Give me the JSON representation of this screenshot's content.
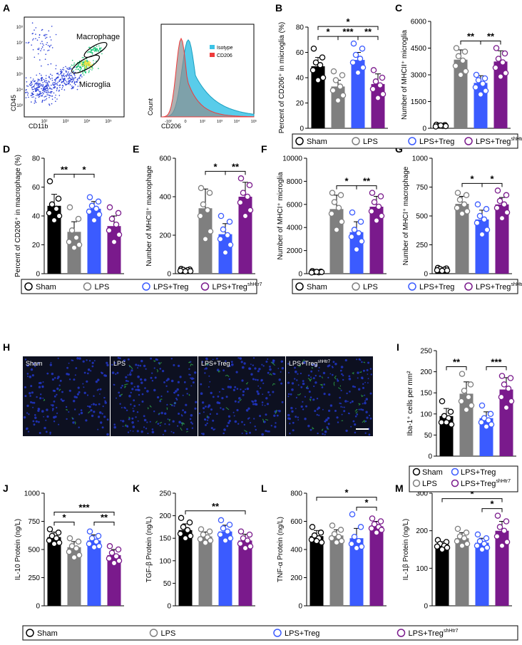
{
  "colors": {
    "sham": "#000000",
    "lps": "#7f7f7f",
    "treg": "#3b5bff",
    "sh": "#7a1a8c",
    "isotype": "#3cc3e6",
    "cd206": "#ef3b3b",
    "img_bg": "#0d1020"
  },
  "legend": {
    "sham": "Sham",
    "lps": "LPS",
    "treg": "LPS+Treg",
    "sh_base": "LPS+Treg",
    "sh_sup": "shHtr7"
  },
  "flow": {
    "panel_label": "A",
    "x_label": "CD11b",
    "y_label": "CD45",
    "gate_macrophage": "Macrophage",
    "gate_microglia": "Microglia",
    "x_ticks": [
      "10²",
      "10³",
      "10⁴",
      "10⁵"
    ],
    "y_ticks": [
      "10³",
      "10⁴",
      "10⁵",
      "10⁶",
      "10⁷",
      "10⁸"
    ]
  },
  "histogram": {
    "x_label": "CD206",
    "y_label": "Count",
    "legend": [
      "Isotype",
      "CD206"
    ],
    "x_ticks": [
      "-10²",
      "0",
      "10²",
      "10³",
      "10⁴",
      "10⁵"
    ]
  },
  "micrographs": {
    "panel_label": "H",
    "labels": [
      "Sham",
      "LPS",
      "LPS+Treg",
      "LPS+Treg"
    ],
    "label_sup": "shHtr7"
  },
  "chart_data": [
    {
      "id": "B",
      "type": "bar",
      "ylabel": "Percent of CD206⁺ in microglia (%)",
      "ylim": [
        0,
        80
      ],
      "yticks": [
        0,
        20,
        40,
        60,
        80
      ],
      "categories": [
        "Sham",
        "LPS",
        "LPS+Treg",
        "LPS+Treg shHtr7"
      ],
      "values": [
        49,
        33,
        54,
        35
      ],
      "errors": [
        7,
        5,
        6,
        8
      ],
      "points": [
        [
          63,
          56,
          52,
          50,
          46,
          40,
          38
        ],
        [
          45,
          42,
          38,
          33,
          30,
          26,
          22
        ],
        [
          67,
          63,
          58,
          55,
          52,
          48,
          44
        ],
        [
          46,
          40,
          37,
          34,
          31,
          27,
          24
        ]
      ],
      "sig": [
        {
          "a": 0,
          "b": 1,
          "label": "*",
          "lvl": 0
        },
        {
          "a": 1,
          "b": 2,
          "label": "***",
          "lvl": 0
        },
        {
          "a": 2,
          "b": 3,
          "label": "**",
          "lvl": 0
        },
        {
          "a": 0,
          "b": 3,
          "label": "*",
          "lvl": 1
        }
      ]
    },
    {
      "id": "C",
      "type": "bar",
      "ylabel": "Number of MHCII⁺ microglia",
      "ylim": [
        0,
        6000
      ],
      "yticks": [
        0,
        1500,
        3000,
        4500,
        6000
      ],
      "categories": [
        "Sham",
        "LPS",
        "LPS+Treg",
        "LPS+Treg shHtr7"
      ],
      "values": [
        150,
        3850,
        2550,
        3750
      ],
      "errors": [
        60,
        550,
        400,
        600
      ],
      "points": [
        [
          200,
          180,
          150,
          130,
          100,
          120,
          160
        ],
        [
          4500,
          4300,
          4050,
          3800,
          3500,
          3200,
          3000
        ],
        [
          3000,
          2800,
          2700,
          2500,
          2300,
          2100,
          1900
        ],
        [
          4500,
          4200,
          3900,
          3700,
          3400,
          3100,
          2900
        ]
      ],
      "sig": [
        {
          "a": 1,
          "b": 2,
          "label": "**",
          "lvl": 0
        },
        {
          "a": 2,
          "b": 3,
          "label": "**",
          "lvl": 0
        }
      ]
    },
    {
      "id": "D",
      "type": "bar",
      "ylabel": "Percent of CD206⁺ in macrophage (%)",
      "ylim": [
        0,
        80
      ],
      "yticks": [
        0,
        20,
        40,
        60,
        80
      ],
      "categories": [
        "Sham",
        "LPS",
        "LPS+Treg",
        "LPS+Treg shHtr7"
      ],
      "values": [
        47,
        29,
        45,
        33
      ],
      "errors": [
        8,
        7,
        5,
        7
      ],
      "points": [
        [
          64,
          52,
          48,
          45,
          42,
          40,
          37
        ],
        [
          46,
          38,
          30,
          25,
          22,
          20,
          18
        ],
        [
          53,
          50,
          47,
          45,
          43,
          41,
          37
        ],
        [
          46,
          42,
          38,
          34,
          30,
          27,
          22
        ]
      ],
      "sig": [
        {
          "a": 0,
          "b": 1,
          "label": "**",
          "lvl": 0
        },
        {
          "a": 1,
          "b": 2,
          "label": "*",
          "lvl": 0
        }
      ]
    },
    {
      "id": "E",
      "type": "bar",
      "ylabel": "Number of MHCII⁺ macrophage",
      "ylim": [
        0,
        600
      ],
      "yticks": [
        0,
        200,
        400,
        600
      ],
      "categories": [
        "Sham",
        "LPS",
        "LPS+Treg",
        "LPS+Treg shHtr7"
      ],
      "values": [
        18,
        340,
        205,
        400
      ],
      "errors": [
        8,
        100,
        55,
        75
      ],
      "points": [
        [
          25,
          22,
          20,
          18,
          15,
          13,
          12
        ],
        [
          445,
          420,
          360,
          330,
          300,
          220,
          180
        ],
        [
          300,
          270,
          230,
          200,
          180,
          150,
          110
        ],
        [
          495,
          460,
          420,
          400,
          370,
          330,
          300
        ]
      ],
      "sig": [
        {
          "a": 1,
          "b": 2,
          "label": "*",
          "lvl": 0
        },
        {
          "a": 2,
          "b": 3,
          "label": "**",
          "lvl": 0
        }
      ]
    },
    {
      "id": "F",
      "type": "bar",
      "ylabel": "Number of MHCI⁺ microglia",
      "ylim": [
        0,
        10000
      ],
      "yticks": [
        0,
        2000,
        4000,
        6000,
        8000,
        10000
      ],
      "categories": [
        "Sham",
        "LPS",
        "LPS+Treg",
        "LPS+Treg shHtr7"
      ],
      "values": [
        150,
        5600,
        3600,
        5800
      ],
      "errors": [
        60,
        1200,
        900,
        900
      ],
      "points": [
        [
          220,
          180,
          150,
          120,
          100,
          140,
          160
        ],
        [
          7000,
          6800,
          6200,
          5700,
          5200,
          4500,
          3800
        ],
        [
          5300,
          4500,
          3800,
          3500,
          3200,
          2800,
          2100
        ],
        [
          7000,
          6700,
          6200,
          5800,
          5400,
          5000,
          4600
        ]
      ],
      "sig": [
        {
          "a": 1,
          "b": 2,
          "label": "*",
          "lvl": 0
        },
        {
          "a": 2,
          "b": 3,
          "label": "**",
          "lvl": 0
        }
      ]
    },
    {
      "id": "G",
      "type": "bar",
      "ylabel": "Number of MHCI⁺ macrophage",
      "ylim": [
        0,
        1000
      ],
      "yticks": [
        0,
        250,
        500,
        750,
        1000
      ],
      "categories": [
        "Sham",
        "LPS",
        "LPS+Treg",
        "LPS+Treg shHtr7"
      ],
      "values": [
        35,
        605,
        470,
        600
      ],
      "errors": [
        12,
        65,
        80,
        60
      ],
      "points": [
        [
          50,
          45,
          40,
          35,
          30,
          28,
          25
        ],
        [
          700,
          680,
          640,
          600,
          570,
          540,
          520
        ],
        [
          600,
          560,
          500,
          470,
          440,
          380,
          340
        ],
        [
          720,
          680,
          630,
          600,
          570,
          530,
          480
        ]
      ],
      "sig": [
        {
          "a": 1,
          "b": 2,
          "label": "*",
          "lvl": 0
        },
        {
          "a": 2,
          "b": 3,
          "label": "*",
          "lvl": 0
        }
      ]
    },
    {
      "id": "I",
      "type": "bar",
      "ylabel": "Iba-1⁺ cells per mm²",
      "ylim": [
        0,
        250
      ],
      "yticks": [
        0,
        50,
        100,
        150,
        200,
        250
      ],
      "categories": [
        "Sham",
        "LPS",
        "LPS+Treg",
        "LPS+Treg shHtr7"
      ],
      "values": [
        95,
        148,
        90,
        158
      ],
      "errors": [
        18,
        28,
        15,
        28
      ],
      "points": [
        [
          130,
          105,
          95,
          90,
          80,
          75,
          80
        ],
        [
          195,
          170,
          155,
          140,
          130,
          120,
          110
        ],
        [
          120,
          100,
          90,
          85,
          80,
          75,
          70
        ],
        [
          190,
          185,
          170,
          160,
          140,
          130,
          115
        ]
      ],
      "sig": [
        {
          "a": 0,
          "b": 1,
          "label": "**",
          "lvl": 0
        },
        {
          "a": 2,
          "b": 3,
          "label": "***",
          "lvl": 0
        }
      ]
    },
    {
      "id": "J",
      "type": "bar",
      "ylabel": "IL-10 Protein (ng/L)",
      "ylim": [
        0,
        1000
      ],
      "yticks": [
        0,
        250,
        500,
        750,
        1000
      ],
      "categories": [
        "Sham",
        "LPS",
        "LPS+Treg",
        "LPS+Treg shHtr7"
      ],
      "values": [
        610,
        520,
        580,
        450
      ],
      "errors": [
        45,
        50,
        50,
        50
      ],
      "points": [
        [
          680,
          650,
          620,
          600,
          580,
          560,
          550
        ],
        [
          600,
          570,
          530,
          510,
          480,
          450,
          430
        ],
        [
          660,
          620,
          600,
          570,
          550,
          530,
          520
        ],
        [
          530,
          500,
          470,
          440,
          420,
          400,
          380
        ]
      ],
      "sig": [
        {
          "a": 0,
          "b": 1,
          "label": "*",
          "lvl": 0
        },
        {
          "a": 2,
          "b": 3,
          "label": "**",
          "lvl": 0
        },
        {
          "a": 0,
          "b": 3,
          "label": "***",
          "lvl": 1
        }
      ]
    },
    {
      "id": "K",
      "type": "bar",
      "ylabel": "TGF-β Protein (ng/L)",
      "ylim": [
        0,
        250
      ],
      "yticks": [
        0,
        50,
        100,
        150,
        200,
        250
      ],
      "categories": [
        "Sham",
        "LPS",
        "LPS+Treg",
        "LPS+Treg shHtr7"
      ],
      "values": [
        168,
        154,
        165,
        145
      ],
      "errors": [
        14,
        10,
        14,
        14
      ],
      "points": [
        [
          195,
          185,
          175,
          168,
          160,
          155,
          150
        ],
        [
          170,
          165,
          158,
          152,
          148,
          145,
          140
        ],
        [
          190,
          180,
          172,
          165,
          158,
          150,
          145
        ],
        [
          165,
          158,
          150,
          145,
          138,
          132,
          128
        ]
      ],
      "sig": [
        {
          "a": 0,
          "b": 3,
          "label": "**",
          "lvl": 0
        }
      ]
    },
    {
      "id": "L",
      "type": "bar",
      "ylabel": "TNF-α Protein (ng/L)",
      "ylim": [
        0,
        800
      ],
      "yticks": [
        0,
        200,
        400,
        600,
        800
      ],
      "categories": [
        "Sham",
        "LPS",
        "LPS+Treg",
        "LPS+Treg shHtr7"
      ],
      "values": [
        495,
        500,
        480,
        565
      ],
      "errors": [
        40,
        40,
        70,
        35
      ],
      "points": [
        [
          560,
          520,
          500,
          480,
          470,
          450,
          460
        ],
        [
          570,
          540,
          510,
          490,
          480,
          460,
          450
        ],
        [
          650,
          560,
          490,
          460,
          440,
          420,
          410
        ],
        [
          620,
          600,
          580,
          560,
          550,
          540,
          520
        ]
      ],
      "sig": [
        {
          "a": 2,
          "b": 3,
          "label": "*",
          "lvl": 0
        },
        {
          "a": 0,
          "b": 3,
          "label": "*",
          "lvl": 1
        }
      ]
    },
    {
      "id": "M",
      "type": "bar",
      "ylabel": "IL-1β Protein (ng/L)",
      "ylim": [
        0,
        300
      ],
      "yticks": [
        0,
        100,
        200,
        300
      ],
      "categories": [
        "Sham",
        "LPS",
        "LPS+Treg",
        "LPS+Treg shHtr7"
      ],
      "values": [
        163,
        180,
        168,
        200
      ],
      "errors": [
        8,
        15,
        12,
        25
      ],
      "points": [
        [
          175,
          170,
          165,
          160,
          158,
          155,
          150
        ],
        [
          205,
          195,
          185,
          180,
          172,
          165,
          160
        ],
        [
          190,
          180,
          172,
          165,
          160,
          155,
          150
        ],
        [
          240,
          225,
          210,
          200,
          185,
          170,
          160
        ]
      ],
      "sig": [
        {
          "a": 2,
          "b": 3,
          "label": "*",
          "lvl": 0
        },
        {
          "a": 0,
          "b": 3,
          "label": "*",
          "lvl": 1
        }
      ]
    }
  ]
}
